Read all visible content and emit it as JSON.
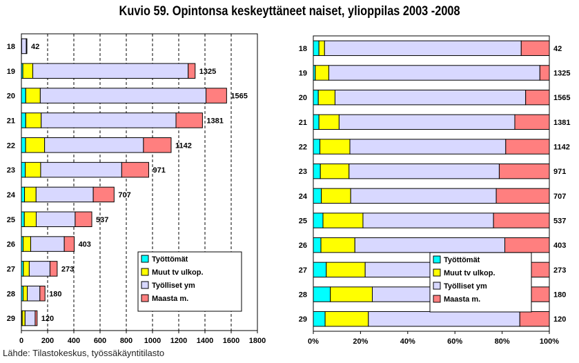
{
  "title": "Kuvio 59. Opintonsa keskeyttäneet naiset, ylioppilas 2003 -2008",
  "source": "Lähde: Tilastokeskus, työssäkäyntitilasto",
  "colors": {
    "Työttömät": "#00ffff",
    "Muut tv ulkop.": "#ffff00",
    "Työlliset ym": "#d8d8ff",
    "Maasta m.": "#ff7f7f"
  },
  "chart_data": [
    {
      "type": "bar",
      "orientation": "horizontal",
      "stacked": true,
      "categories": [
        "18",
        "19",
        "20",
        "21",
        "22",
        "23",
        "24",
        "25",
        "26",
        "27",
        "28",
        "29"
      ],
      "totals": [
        42,
        1325,
        1565,
        1381,
        1142,
        971,
        707,
        537,
        403,
        273,
        180,
        120
      ],
      "series": [
        {
          "name": "Työttömät",
          "values": [
            1,
            11,
            33,
            33,
            32,
            29,
            24,
            22,
            13,
            15,
            13,
            6
          ]
        },
        {
          "name": "Muut tv ulkop.",
          "values": [
            1,
            76,
            111,
            118,
            145,
            118,
            88,
            91,
            58,
            45,
            32,
            22
          ]
        },
        {
          "name": "Työlliset ym",
          "values": [
            35,
            1185,
            1264,
            1028,
            754,
            618,
            436,
            297,
            256,
            158,
            96,
            77
          ]
        },
        {
          "name": "Maasta m.",
          "values": [
            5,
            53,
            157,
            202,
            211,
            206,
            159,
            127,
            76,
            55,
            39,
            15
          ]
        }
      ],
      "xlim": [
        0,
        1800
      ],
      "xticks": [
        "0",
        "200",
        "400",
        "600",
        "800",
        "1000",
        "1200",
        "1400",
        "1600",
        "1800"
      ],
      "grid": "vertical dashed",
      "legend": "bottom-right"
    },
    {
      "type": "bar",
      "orientation": "horizontal",
      "stacked": true,
      "normalized": true,
      "categories": [
        "18",
        "19",
        "20",
        "21",
        "22",
        "23",
        "24",
        "25",
        "26",
        "27",
        "28",
        "29"
      ],
      "totals": [
        42,
        1325,
        1565,
        1381,
        1142,
        971,
        707,
        537,
        403,
        273,
        180,
        120
      ],
      "series": [
        {
          "name": "Työttömät",
          "values": [
            1,
            11,
            33,
            33,
            32,
            29,
            24,
            22,
            13,
            15,
            13,
            6
          ]
        },
        {
          "name": "Muut tv ulkop.",
          "values": [
            1,
            76,
            111,
            118,
            145,
            118,
            88,
            91,
            58,
            45,
            32,
            22
          ]
        },
        {
          "name": "Työlliset ym",
          "values": [
            35,
            1185,
            1264,
            1028,
            754,
            618,
            436,
            297,
            256,
            158,
            96,
            77
          ]
        },
        {
          "name": "Maasta m.",
          "values": [
            5,
            53,
            157,
            202,
            211,
            206,
            159,
            127,
            76,
            55,
            39,
            15
          ]
        }
      ],
      "xlim": [
        0,
        100
      ],
      "xticks": [
        "0%",
        "20%",
        "40%",
        "60%",
        "80%",
        "100%"
      ],
      "grid": "none",
      "legend": "bottom-center"
    }
  ]
}
